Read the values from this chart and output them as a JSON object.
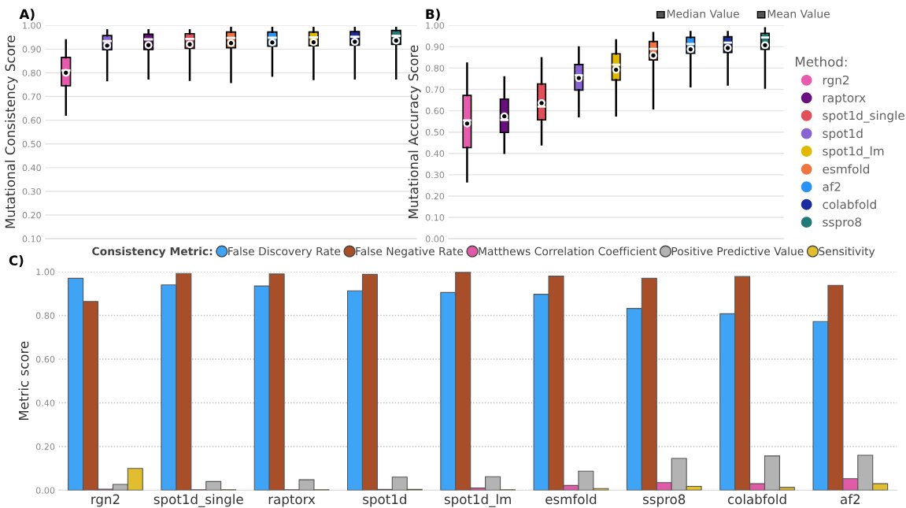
{
  "chart_data": [
    {
      "type": "box",
      "title": "A)",
      "ylabel": "Mutational Consistency Score",
      "categories": [
        null,
        null,
        null,
        null,
        null,
        null,
        null,
        null,
        null
      ],
      "ylim": [
        0.1,
        1.0
      ],
      "yticks": [
        {
          "value": 0.1,
          "label": "0.10"
        },
        {
          "value": 0.2,
          "label": "0.20"
        },
        {
          "value": 0.3,
          "label": "0.30"
        },
        {
          "value": 0.4,
          "label": "0.40"
        },
        {
          "value": 0.5,
          "label": "0.50"
        },
        {
          "value": 0.6,
          "label": "0.60"
        },
        {
          "value": 0.7,
          "label": "0.70"
        },
        {
          "value": 0.8,
          "label": "0.80"
        },
        {
          "value": 0.9,
          "label": "0.90"
        },
        {
          "value": 1.0,
          "label": "1.00"
        }
      ],
      "grid": "y",
      "tick_labels": "y",
      "series": [
        {
          "color": "#e85aad",
          "boxes": [
            {
              "low": 0.623,
              "q1": 0.745,
              "median": 0.81,
              "q3": 0.865,
              "high": 0.938,
              "mean": 0.8
            },
            null,
            null,
            null,
            null,
            null,
            null,
            null,
            null
          ]
        },
        {
          "color": "#8a63d2",
          "boxes": [
            null,
            {
              "low": 0.768,
              "q1": 0.897,
              "median": 0.934,
              "q3": 0.957,
              "high": 0.98,
              "mean": 0.915
            },
            null,
            null,
            null,
            null,
            null,
            null,
            null
          ]
        },
        {
          "color": "#6a0f7f",
          "boxes": [
            null,
            null,
            {
              "low": 0.776,
              "q1": 0.898,
              "median": 0.941,
              "q3": 0.963,
              "high": 0.98,
              "mean": 0.917
            },
            null,
            null,
            null,
            null,
            null,
            null
          ]
        },
        {
          "color": "#e0505a",
          "boxes": [
            null,
            null,
            null,
            {
              "low": 0.77,
              "q1": 0.903,
              "median": 0.943,
              "q3": 0.965,
              "high": 0.98,
              "mean": 0.92
            },
            null,
            null,
            null,
            null,
            null
          ]
        },
        {
          "color": "#ee7542",
          "boxes": [
            null,
            null,
            null,
            null,
            {
              "low": 0.761,
              "q1": 0.906,
              "median": 0.947,
              "q3": 0.972,
              "high": 0.99,
              "mean": 0.925
            },
            null,
            null,
            null,
            null
          ]
        },
        {
          "color": "#2894f5",
          "boxes": [
            null,
            null,
            null,
            null,
            null,
            {
              "low": 0.787,
              "q1": 0.912,
              "median": 0.948,
              "q3": 0.972,
              "high": 0.99,
              "mean": 0.928
            },
            null,
            null,
            null
          ]
        },
        {
          "color": "#e0b800",
          "boxes": [
            null,
            null,
            null,
            null,
            null,
            null,
            {
              "low": 0.773,
              "q1": 0.914,
              "median": 0.95,
              "q3": 0.972,
              "high": 0.99,
              "mean": 0.929
            },
            null,
            null
          ]
        },
        {
          "color": "#1a2ea0",
          "boxes": [
            null,
            null,
            null,
            null,
            null,
            null,
            null,
            {
              "low": 0.776,
              "q1": 0.916,
              "median": 0.952,
              "q3": 0.974,
              "high": 0.99,
              "mean": 0.931
            },
            null
          ]
        },
        {
          "color": "#1f7a78",
          "boxes": [
            null,
            null,
            null,
            null,
            null,
            null,
            null,
            null,
            {
              "low": 0.776,
              "q1": 0.92,
              "median": 0.956,
              "q3": 0.979,
              "high": 0.99,
              "mean": 0.936
            }
          ]
        }
      ]
    },
    {
      "type": "box",
      "title": "B)",
      "ylabel": "Mutational Accuracy Score",
      "categories": [
        null,
        null,
        null,
        null,
        null,
        null,
        null,
        null,
        null
      ],
      "ylim": [
        0.0,
        1.0
      ],
      "yticks": [
        {
          "value": 0.0,
          "label": "0.00"
        },
        {
          "value": 0.1,
          "label": "0.10"
        },
        {
          "value": 0.2,
          "label": "0.20"
        },
        {
          "value": 0.3,
          "label": "0.30"
        },
        {
          "value": 0.4,
          "label": "0.40"
        },
        {
          "value": 0.5,
          "label": "0.50"
        },
        {
          "value": 0.6,
          "label": "0.60"
        },
        {
          "value": 0.7,
          "label": "0.70"
        },
        {
          "value": 0.8,
          "label": "0.80"
        },
        {
          "value": 0.9,
          "label": "0.90"
        },
        {
          "value": 1.0,
          "label": "1.00"
        }
      ],
      "grid": "y",
      "tick_labels": "y",
      "legend": "right",
      "legend_title": "Method:",
      "annotations": [
        "Median Value",
        "Mean Value"
      ],
      "series": [
        {
          "name": "rgn2",
          "color": "#e85aad",
          "boxes": [
            {
              "low": 0.268,
              "q1": 0.427,
              "median": 0.555,
              "q3": 0.672,
              "high": 0.822,
              "mean": 0.54
            },
            null,
            null,
            null,
            null,
            null,
            null,
            null,
            null
          ]
        },
        {
          "name": "raptorx",
          "color": "#6a0f7f",
          "boxes": [
            null,
            {
              "low": 0.402,
              "q1": 0.498,
              "median": 0.557,
              "q3": 0.655,
              "high": 0.757,
              "mean": 0.574
            },
            null,
            null,
            null,
            null,
            null,
            null,
            null
          ]
        },
        {
          "name": "spot1d_single",
          "color": "#e0505a",
          "boxes": [
            null,
            null,
            {
              "low": 0.442,
              "q1": 0.557,
              "median": 0.619,
              "q3": 0.726,
              "high": 0.847,
              "mean": 0.636
            },
            null,
            null,
            null,
            null,
            null,
            null
          ]
        },
        {
          "name": "spot1d",
          "color": "#8a63d2",
          "boxes": [
            null,
            null,
            null,
            {
              "low": 0.574,
              "q1": 0.697,
              "median": 0.766,
              "q3": 0.817,
              "high": 0.898,
              "mean": 0.753
            },
            null,
            null,
            null,
            null,
            null
          ]
        },
        {
          "name": "spot1d_lm",
          "color": "#e0b800",
          "boxes": [
            null,
            null,
            null,
            null,
            {
              "low": 0.577,
              "q1": 0.744,
              "median": 0.816,
              "q3": 0.867,
              "high": 0.931,
              "mean": 0.792
            },
            null,
            null,
            null,
            null
          ]
        },
        {
          "name": "esmfold",
          "color": "#ee7542",
          "boxes": [
            null,
            null,
            null,
            null,
            null,
            {
              "low": 0.611,
              "q1": 0.838,
              "median": 0.89,
              "q3": 0.925,
              "high": 0.965,
              "mean": 0.859
            },
            null,
            null,
            null
          ]
        },
        {
          "name": "af2",
          "color": "#2894f5",
          "boxes": [
            null,
            null,
            null,
            null,
            null,
            null,
            {
              "low": 0.714,
              "q1": 0.869,
              "median": 0.913,
              "q3": 0.944,
              "high": 0.97,
              "mean": 0.888
            },
            null,
            null
          ]
        },
        {
          "name": "colabfold",
          "color": "#1a2ea0",
          "boxes": [
            null,
            null,
            null,
            null,
            null,
            null,
            null,
            {
              "low": 0.722,
              "q1": 0.873,
              "median": 0.919,
              "q3": 0.947,
              "high": 0.97,
              "mean": 0.894
            },
            null
          ]
        },
        {
          "name": "sspro8",
          "color": "#1f7a78",
          "boxes": [
            null,
            null,
            null,
            null,
            null,
            null,
            null,
            null,
            {
              "low": 0.707,
              "q1": 0.888,
              "median": 0.943,
              "q3": 0.963,
              "high": 0.987,
              "mean": 0.907
            }
          ]
        }
      ]
    },
    {
      "type": "bar",
      "title": "C)",
      "ylabel": "Metric score",
      "legend": "top",
      "legend_title": "Consistency Metric:",
      "grid": "y",
      "categories": [
        "rgn2",
        "spot1d_single",
        "raptorx",
        "spot1d",
        "spot1d_lm",
        "esmfold",
        "sspro8",
        "colabfold",
        "af2"
      ],
      "ylim": [
        0.0,
        1.0
      ],
      "yticks": [
        {
          "value": 0.0,
          "label": "0.00"
        },
        {
          "value": 0.2,
          "label": "0.20"
        },
        {
          "value": 0.4,
          "label": "0.40"
        },
        {
          "value": 0.6,
          "label": "0.60"
        },
        {
          "value": 0.8,
          "label": "0.80"
        },
        {
          "value": 1.0,
          "label": "1.00"
        }
      ],
      "series": [
        {
          "name": "False Discovery Rate",
          "color": "#3fa4f5",
          "values": [
            0.97,
            0.94,
            0.935,
            0.913,
            0.905,
            0.897,
            0.832,
            0.808,
            0.772
          ]
        },
        {
          "name": "False Negative Rate",
          "color": "#a84f2a",
          "values": [
            0.864,
            0.992,
            0.99,
            0.988,
            0.997,
            0.98,
            0.97,
            0.978,
            0.938
          ]
        },
        {
          "name": "Matthews Correlation Coefficient",
          "color": "#e05aa8",
          "values": [
            0.005,
            0.002,
            0.002,
            0.004,
            0.01,
            0.022,
            0.035,
            0.03,
            0.053
          ]
        },
        {
          "name": "Positive Predictive Value",
          "color": "#b3b3b3",
          "values": [
            0.027,
            0.04,
            0.048,
            0.06,
            0.062,
            0.087,
            0.146,
            0.157,
            0.16
          ]
        },
        {
          "name": "Sensitivity",
          "color": "#e0be30",
          "values": [
            0.1,
            0.002,
            0.002,
            0.004,
            0.002,
            0.008,
            0.018,
            0.013,
            0.03
          ]
        }
      ]
    }
  ]
}
